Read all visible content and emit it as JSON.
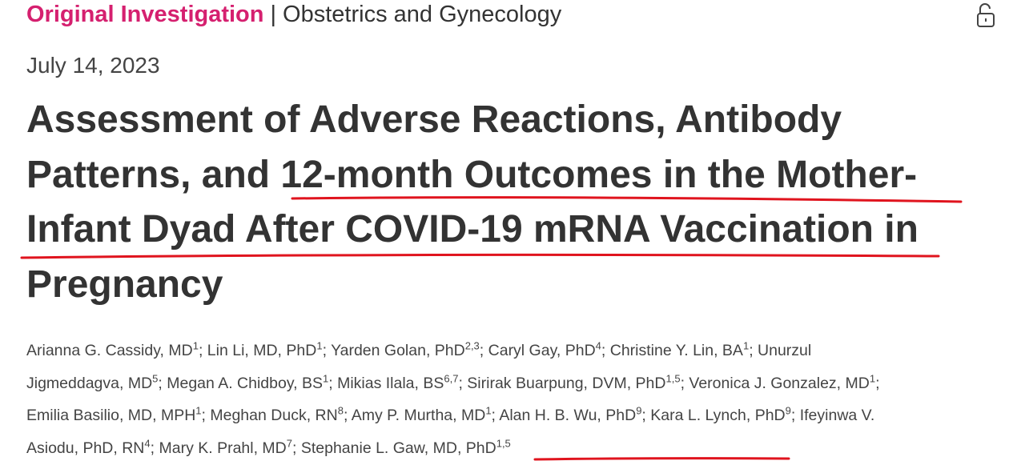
{
  "header": {
    "article_type": "Original Investigation",
    "section": "Obstetrics and Gynecology"
  },
  "date": "July 14, 2023",
  "title": {
    "lines": [
      "Assessment of Adverse Reactions, Antibody",
      "Patterns, and 12-month Outcomes in the Mother-",
      "Infant Dyad After COVID-19 mRNA Vaccination in",
      "Pregnancy"
    ]
  },
  "authors": [
    {
      "name": "Arianna G. Cassidy, MD",
      "affiliations": "1"
    },
    {
      "name": "Lin Li, MD, PhD",
      "affiliations": "1"
    },
    {
      "name": "Yarden Golan, PhD",
      "affiliations": "2,3"
    },
    {
      "name": "Caryl Gay, PhD",
      "affiliations": "4"
    },
    {
      "name": "Christine Y. Lin, BA",
      "affiliations": "1"
    },
    {
      "name": "Unurzul Jigmeddagva, MD",
      "affiliations": "5"
    },
    {
      "name": "Megan A. Chidboy, BS",
      "affiliations": "1"
    },
    {
      "name": "Mikias Ilala, BS",
      "affiliations": "6,7"
    },
    {
      "name": "Sirirak Buarpung, DVM, PhD",
      "affiliations": "1,5"
    },
    {
      "name": "Veronica J. Gonzalez, MD",
      "affiliations": "1"
    },
    {
      "name": "Emilia Basilio, MD, MPH",
      "affiliations": "1"
    },
    {
      "name": "Meghan Duck, RN",
      "affiliations": "8"
    },
    {
      "name": "Amy P. Murtha, MD",
      "affiliations": "1"
    },
    {
      "name": "Alan H. B. Wu, PhD",
      "affiliations": "9"
    },
    {
      "name": "Kara L. Lynch, PhD",
      "affiliations": "9"
    },
    {
      "name": "Ifeyinwa V. Asiodu, PhD, RN",
      "affiliations": "4"
    },
    {
      "name": "Mary K. Prahl, MD",
      "affiliations": "7"
    },
    {
      "name": "Stephanie L. Gaw, MD, PhD",
      "affiliations": "1,5"
    }
  ]
}
